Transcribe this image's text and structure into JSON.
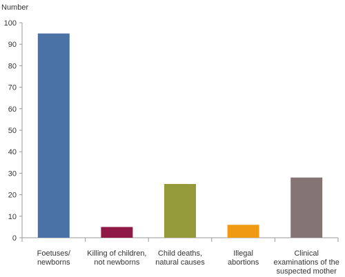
{
  "chart_data": {
    "type": "bar",
    "ylabel": "Number",
    "xlabel": "",
    "ylim": [
      0,
      100
    ],
    "yticks": [
      0,
      10,
      20,
      30,
      40,
      50,
      60,
      70,
      80,
      90,
      100
    ],
    "grid": false,
    "categories": [
      [
        "Foetuses/",
        "newborns"
      ],
      [
        "Killing of children,",
        "not newborns"
      ],
      [
        "Child deaths,",
        "natural causes"
      ],
      [
        "Illegal",
        "abortions"
      ],
      [
        "Clinical",
        "examinations of the",
        "suspected mother"
      ]
    ],
    "values": [
      95,
      5,
      25,
      6,
      28
    ],
    "colors": [
      "#4a72a6",
      "#8e1a45",
      "#949a3a",
      "#ef9a12",
      "#847474"
    ]
  }
}
